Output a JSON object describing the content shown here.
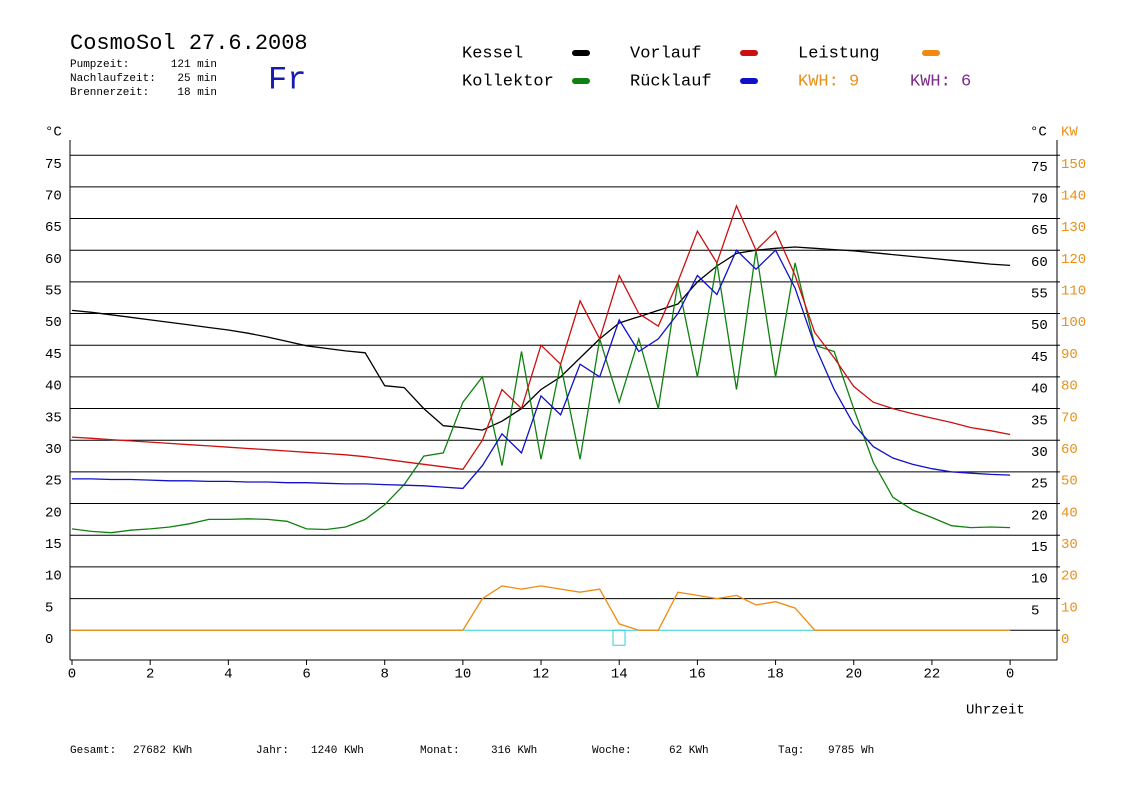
{
  "chart_data": {
    "type": "line",
    "title": "CosmoSol 27.6.2008",
    "weekday": "Fr",
    "info": [
      {
        "label": "Pumpzeit:",
        "value": "121 min"
      },
      {
        "label": "Nachlaufzeit:",
        "value": "25 min"
      },
      {
        "label": "Brennerzeit:",
        "value": "18 min"
      }
    ],
    "annotations": [
      {
        "text": "KWH: 9",
        "color": "#e8901a"
      },
      {
        "text": "KWH: 6",
        "color": "#7a2a8a"
      }
    ],
    "y_label": "°C",
    "y2_label": "KW",
    "x_label": "Uhrzeit",
    "totals": [
      {
        "label": "Gesamt:",
        "value": "27682 KWh"
      },
      {
        "label": "Jahr:",
        "value": "1240 KWh"
      },
      {
        "label": "Monat:",
        "value": "316 KWh"
      },
      {
        "label": "Woche:",
        "value": "62 KWh"
      },
      {
        "label": "Tag:",
        "value": "9785 Wh"
      }
    ],
    "xlim": [
      0,
      25.2
    ],
    "ylim": [
      -4.7,
      77.4
    ],
    "y2lim": [
      -9.4,
      154.8
    ],
    "xticks": [
      0,
      2,
      4,
      6,
      8,
      10,
      12,
      14,
      16,
      18,
      20,
      22,
      {
        "value": 24,
        "label": "0"
      }
    ],
    "yticks": [
      0,
      5,
      10,
      15,
      20,
      25,
      30,
      35,
      40,
      45,
      50,
      55,
      60,
      65,
      70,
      75
    ],
    "y2ticks": [
      0,
      10,
      20,
      30,
      40,
      50,
      60,
      70,
      80,
      90,
      100,
      110,
      120,
      130,
      140,
      150
    ],
    "grid": true,
    "x": [
      0,
      0.5,
      1,
      1.5,
      2,
      2.5,
      3,
      3.5,
      4,
      4.5,
      5,
      5.5,
      6,
      6.5,
      7,
      7.5,
      8,
      8.5,
      9,
      9.5,
      10,
      10.5,
      11,
      11.5,
      12,
      12.5,
      13,
      13.5,
      14,
      14.5,
      15,
      15.5,
      16,
      16.5,
      17,
      17.5,
      18,
      18.5,
      19,
      19.5,
      20,
      20.5,
      21,
      21.5,
      22,
      22.5,
      23,
      23.5,
      24
    ],
    "series": [
      {
        "name": "Kessel",
        "color": "#000000",
        "values": [
          50.5,
          50.2,
          49.8,
          49.4,
          49,
          48.6,
          48.2,
          47.8,
          47.4,
          46.9,
          46.3,
          45.6,
          44.9,
          44.5,
          44.1,
          43.8,
          38.6,
          38.3,
          35,
          32.3,
          32,
          31.6,
          33,
          35,
          38,
          40,
          43,
          46,
          48.5,
          49.5,
          50.5,
          51.5,
          55,
          57.5,
          59.5,
          60,
          60.3,
          60.5,
          60.3,
          60.1,
          59.9,
          59.6,
          59.3,
          59,
          58.7,
          58.4,
          58.1,
          57.8,
          57.6
        ]
      },
      {
        "name": "Kollektor",
        "color": "#108010",
        "values": [
          16,
          15.6,
          15.4,
          15.8,
          16,
          16.3,
          16.8,
          17.5,
          17.5,
          17.6,
          17.5,
          17.2,
          16,
          15.9,
          16.3,
          17.5,
          19.8,
          23,
          27.5,
          28,
          36,
          40,
          26,
          44,
          27,
          42,
          27,
          46,
          36,
          46,
          35,
          55,
          40,
          58,
          38,
          60,
          40,
          58,
          45,
          44,
          35,
          26.5,
          21,
          19,
          17.8,
          16.5,
          16.2,
          16.3,
          16.2
        ]
      },
      {
        "name": "Vorlauf",
        "color": "#cc1010",
        "values": [
          30.5,
          30.3,
          30.1,
          29.9,
          29.7,
          29.5,
          29.3,
          29.1,
          28.9,
          28.7,
          28.5,
          28.3,
          28.1,
          27.9,
          27.7,
          27.4,
          27,
          26.6,
          26.2,
          25.8,
          25.4,
          30,
          38,
          35,
          45,
          42,
          52,
          46,
          56,
          50,
          48,
          55,
          63,
          58,
          67,
          60,
          63,
          56,
          47,
          43,
          38.5,
          36,
          35,
          34.2,
          33.5,
          32.8,
          32,
          31.5,
          30.9
        ]
      },
      {
        "name": "Rücklauf",
        "color": "#1010c8",
        "values": [
          23.9,
          23.9,
          23.8,
          23.8,
          23.7,
          23.6,
          23.6,
          23.5,
          23.5,
          23.4,
          23.4,
          23.3,
          23.3,
          23.2,
          23.1,
          23.1,
          23,
          22.9,
          22.8,
          22.6,
          22.4,
          26,
          31,
          28,
          37,
          34,
          42,
          40,
          49,
          44,
          46,
          50,
          56,
          53,
          60,
          57,
          60,
          54,
          45,
          38,
          32.5,
          29,
          27.2,
          26.2,
          25.5,
          25,
          24.8,
          24.6,
          24.5
        ]
      },
      {
        "name": "Leistung",
        "color": "#f08a10",
        "axis": "y2",
        "values": [
          0,
          0,
          0,
          0,
          0,
          0,
          0,
          0,
          0,
          0,
          0,
          0,
          0,
          0,
          0,
          0,
          0,
          0,
          0,
          0,
          0,
          10,
          14,
          13,
          14,
          13,
          12,
          13,
          2,
          0,
          0,
          12,
          11,
          10,
          11,
          8,
          9,
          7,
          0,
          0,
          0,
          0,
          0,
          0,
          0,
          0,
          0,
          0,
          0
        ]
      }
    ]
  }
}
